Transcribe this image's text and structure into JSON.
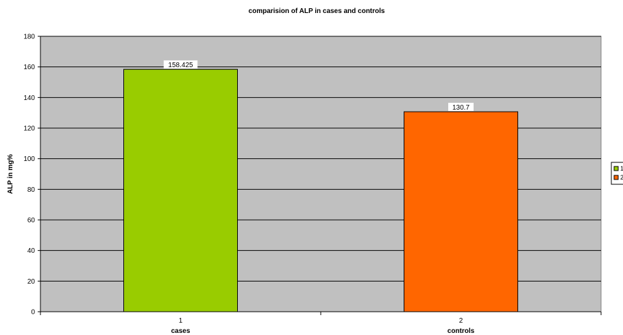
{
  "chart_data": {
    "type": "bar",
    "title": "comparision of ALP in cases and controls",
    "ylabel": "ALP in mg%",
    "ylim": [
      0,
      180
    ],
    "ytick_step": 20,
    "grid": true,
    "x_tick_labels": [
      "1",
      "2"
    ],
    "categories": [
      "cases",
      "controls"
    ],
    "values": [
      158.425,
      130.7
    ],
    "data_labels": [
      "158.425",
      "130.7"
    ],
    "colors": [
      "#99CC00",
      "#FF6600"
    ],
    "legend": {
      "placement": "right",
      "entries": [
        {
          "label": "1",
          "color": "#99CC00"
        },
        {
          "label": "2",
          "color": "#FF6600"
        }
      ]
    },
    "plot_background": "#C0C0C0"
  }
}
